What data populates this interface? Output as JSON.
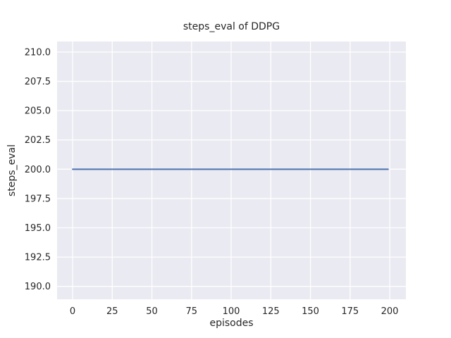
{
  "chart_data": {
    "type": "line",
    "title": "steps_eval of DDPG",
    "xlabel": "episodes",
    "ylabel": "steps_eval",
    "xlim": [
      -9.8,
      210.2
    ],
    "ylim": [
      188.9,
      210.9
    ],
    "x_ticks": [
      0,
      25,
      50,
      75,
      100,
      125,
      150,
      175,
      200
    ],
    "x_tick_labels": [
      "0",
      "25",
      "50",
      "75",
      "100",
      "125",
      "150",
      "175",
      "200"
    ],
    "y_ticks": [
      190.0,
      192.5,
      195.0,
      197.5,
      200.0,
      202.5,
      205.0,
      207.5,
      210.0
    ],
    "y_tick_labels": [
      "190.0",
      "192.5",
      "195.0",
      "197.5",
      "200.0",
      "202.5",
      "205.0",
      "207.5",
      "210.0"
    ],
    "grid": true,
    "legend": "none",
    "series": [
      {
        "name": "steps_eval",
        "color": "#4c72b0",
        "x": [
          0,
          199
        ],
        "values": [
          200.0,
          200.0
        ]
      }
    ],
    "colors": {
      "plot_background": "#eaeaf2",
      "grid_line": "#ffffff",
      "text": "#262626",
      "figure_background": "#ffffff"
    }
  }
}
